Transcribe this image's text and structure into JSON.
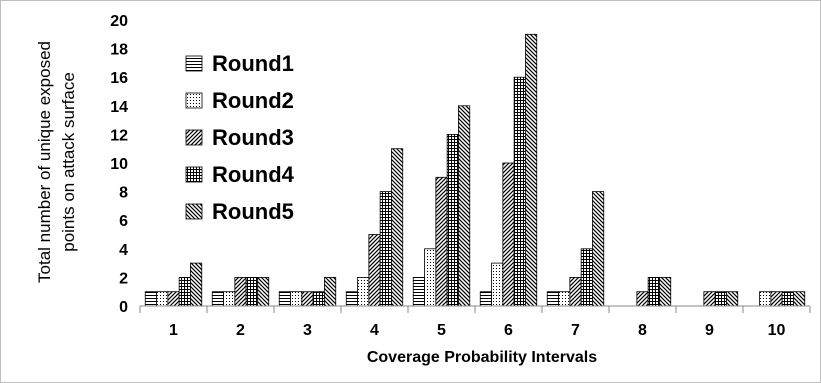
{
  "chart_data": {
    "type": "bar",
    "title": "",
    "xlabel": "Coverage Probability Intervals",
    "ylabel_lines": [
      "Total number of unique exposed",
      "points on attack surface"
    ],
    "categories": [
      "1",
      "2",
      "3",
      "4",
      "5",
      "6",
      "7",
      "8",
      "9",
      "10"
    ],
    "ylim": [
      0,
      20
    ],
    "yticks": [
      0,
      2,
      4,
      6,
      8,
      10,
      12,
      14,
      16,
      18,
      20
    ],
    "grid": false,
    "legend": "top-left inside plot",
    "series": [
      {
        "name": "Round1",
        "pattern": "horizontal-lines",
        "values": [
          1,
          1,
          1,
          1,
          2,
          1,
          1,
          0,
          0,
          0
        ]
      },
      {
        "name": "Round2",
        "pattern": "dots",
        "values": [
          1,
          1,
          1,
          2,
          4,
          3,
          1,
          0,
          0,
          1
        ]
      },
      {
        "name": "Round3",
        "pattern": "diagonal-up",
        "values": [
          1,
          2,
          1,
          5,
          9,
          10,
          2,
          1,
          1,
          1
        ]
      },
      {
        "name": "Round4",
        "pattern": "grid",
        "values": [
          2,
          2,
          1,
          8,
          12,
          16,
          4,
          2,
          1,
          1
        ]
      },
      {
        "name": "Round5",
        "pattern": "diagonal-down",
        "values": [
          3,
          2,
          2,
          11,
          14,
          19,
          8,
          2,
          1,
          1
        ]
      }
    ]
  }
}
